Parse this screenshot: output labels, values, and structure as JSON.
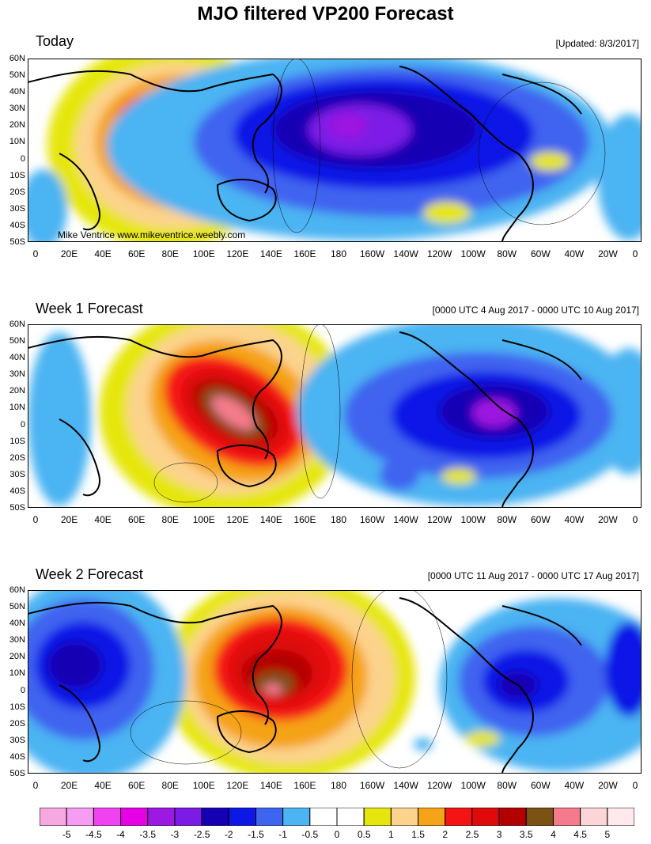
{
  "title": "MJO filtered VP200 Forecast",
  "credit": "Mike Ventrice www.mikeventrice.weebly.com",
  "lat_ticks": [
    "60N",
    "50N",
    "40N",
    "30N",
    "20N",
    "10N",
    "0",
    "10S",
    "20S",
    "30S",
    "40S",
    "50S"
  ],
  "lon_ticks": [
    "0",
    "20E",
    "40E",
    "60E",
    "80E",
    "100E",
    "120E",
    "140E",
    "160E",
    "180",
    "160W",
    "140W",
    "120W",
    "100W",
    "80W",
    "60W",
    "40W",
    "20W",
    "0"
  ],
  "panels": [
    {
      "title": "Today",
      "note": "[Updated: 8/3/2017]"
    },
    {
      "title": "Week 1 Forecast",
      "note": "[0000 UTC 4 Aug 2017 - 0000 UTC 10 Aug 2017]"
    },
    {
      "title": "Week 2 Forecast",
      "note": "[0000 UTC 11 Aug 2017 - 0000 UTC 17 Aug 2017]"
    }
  ],
  "colorbar": {
    "colors": [
      "#f6a8e0",
      "#f59df3",
      "#f042f0",
      "#e600e6",
      "#9b19e0",
      "#7c1ae6",
      "#1500b4",
      "#0d18e6",
      "#3f64f0",
      "#4cb4f2",
      "#ffffff",
      "#ffffff",
      "#e6e60f",
      "#fcd38c",
      "#f5a318",
      "#f51414",
      "#e00a0a",
      "#b30000",
      "#7b5214",
      "#f57b8c",
      "#fcd5d8",
      "#ffe9ec"
    ],
    "labels": [
      "-5",
      "-4.5",
      "-4",
      "-3.5",
      "-3",
      "-2.5",
      "-2",
      "-1.5",
      "-1",
      "-0.5",
      "0",
      "0.5",
      "1",
      "1.5",
      "2",
      "2.5",
      "3",
      "3.5",
      "4",
      "4.5",
      "5"
    ]
  }
}
